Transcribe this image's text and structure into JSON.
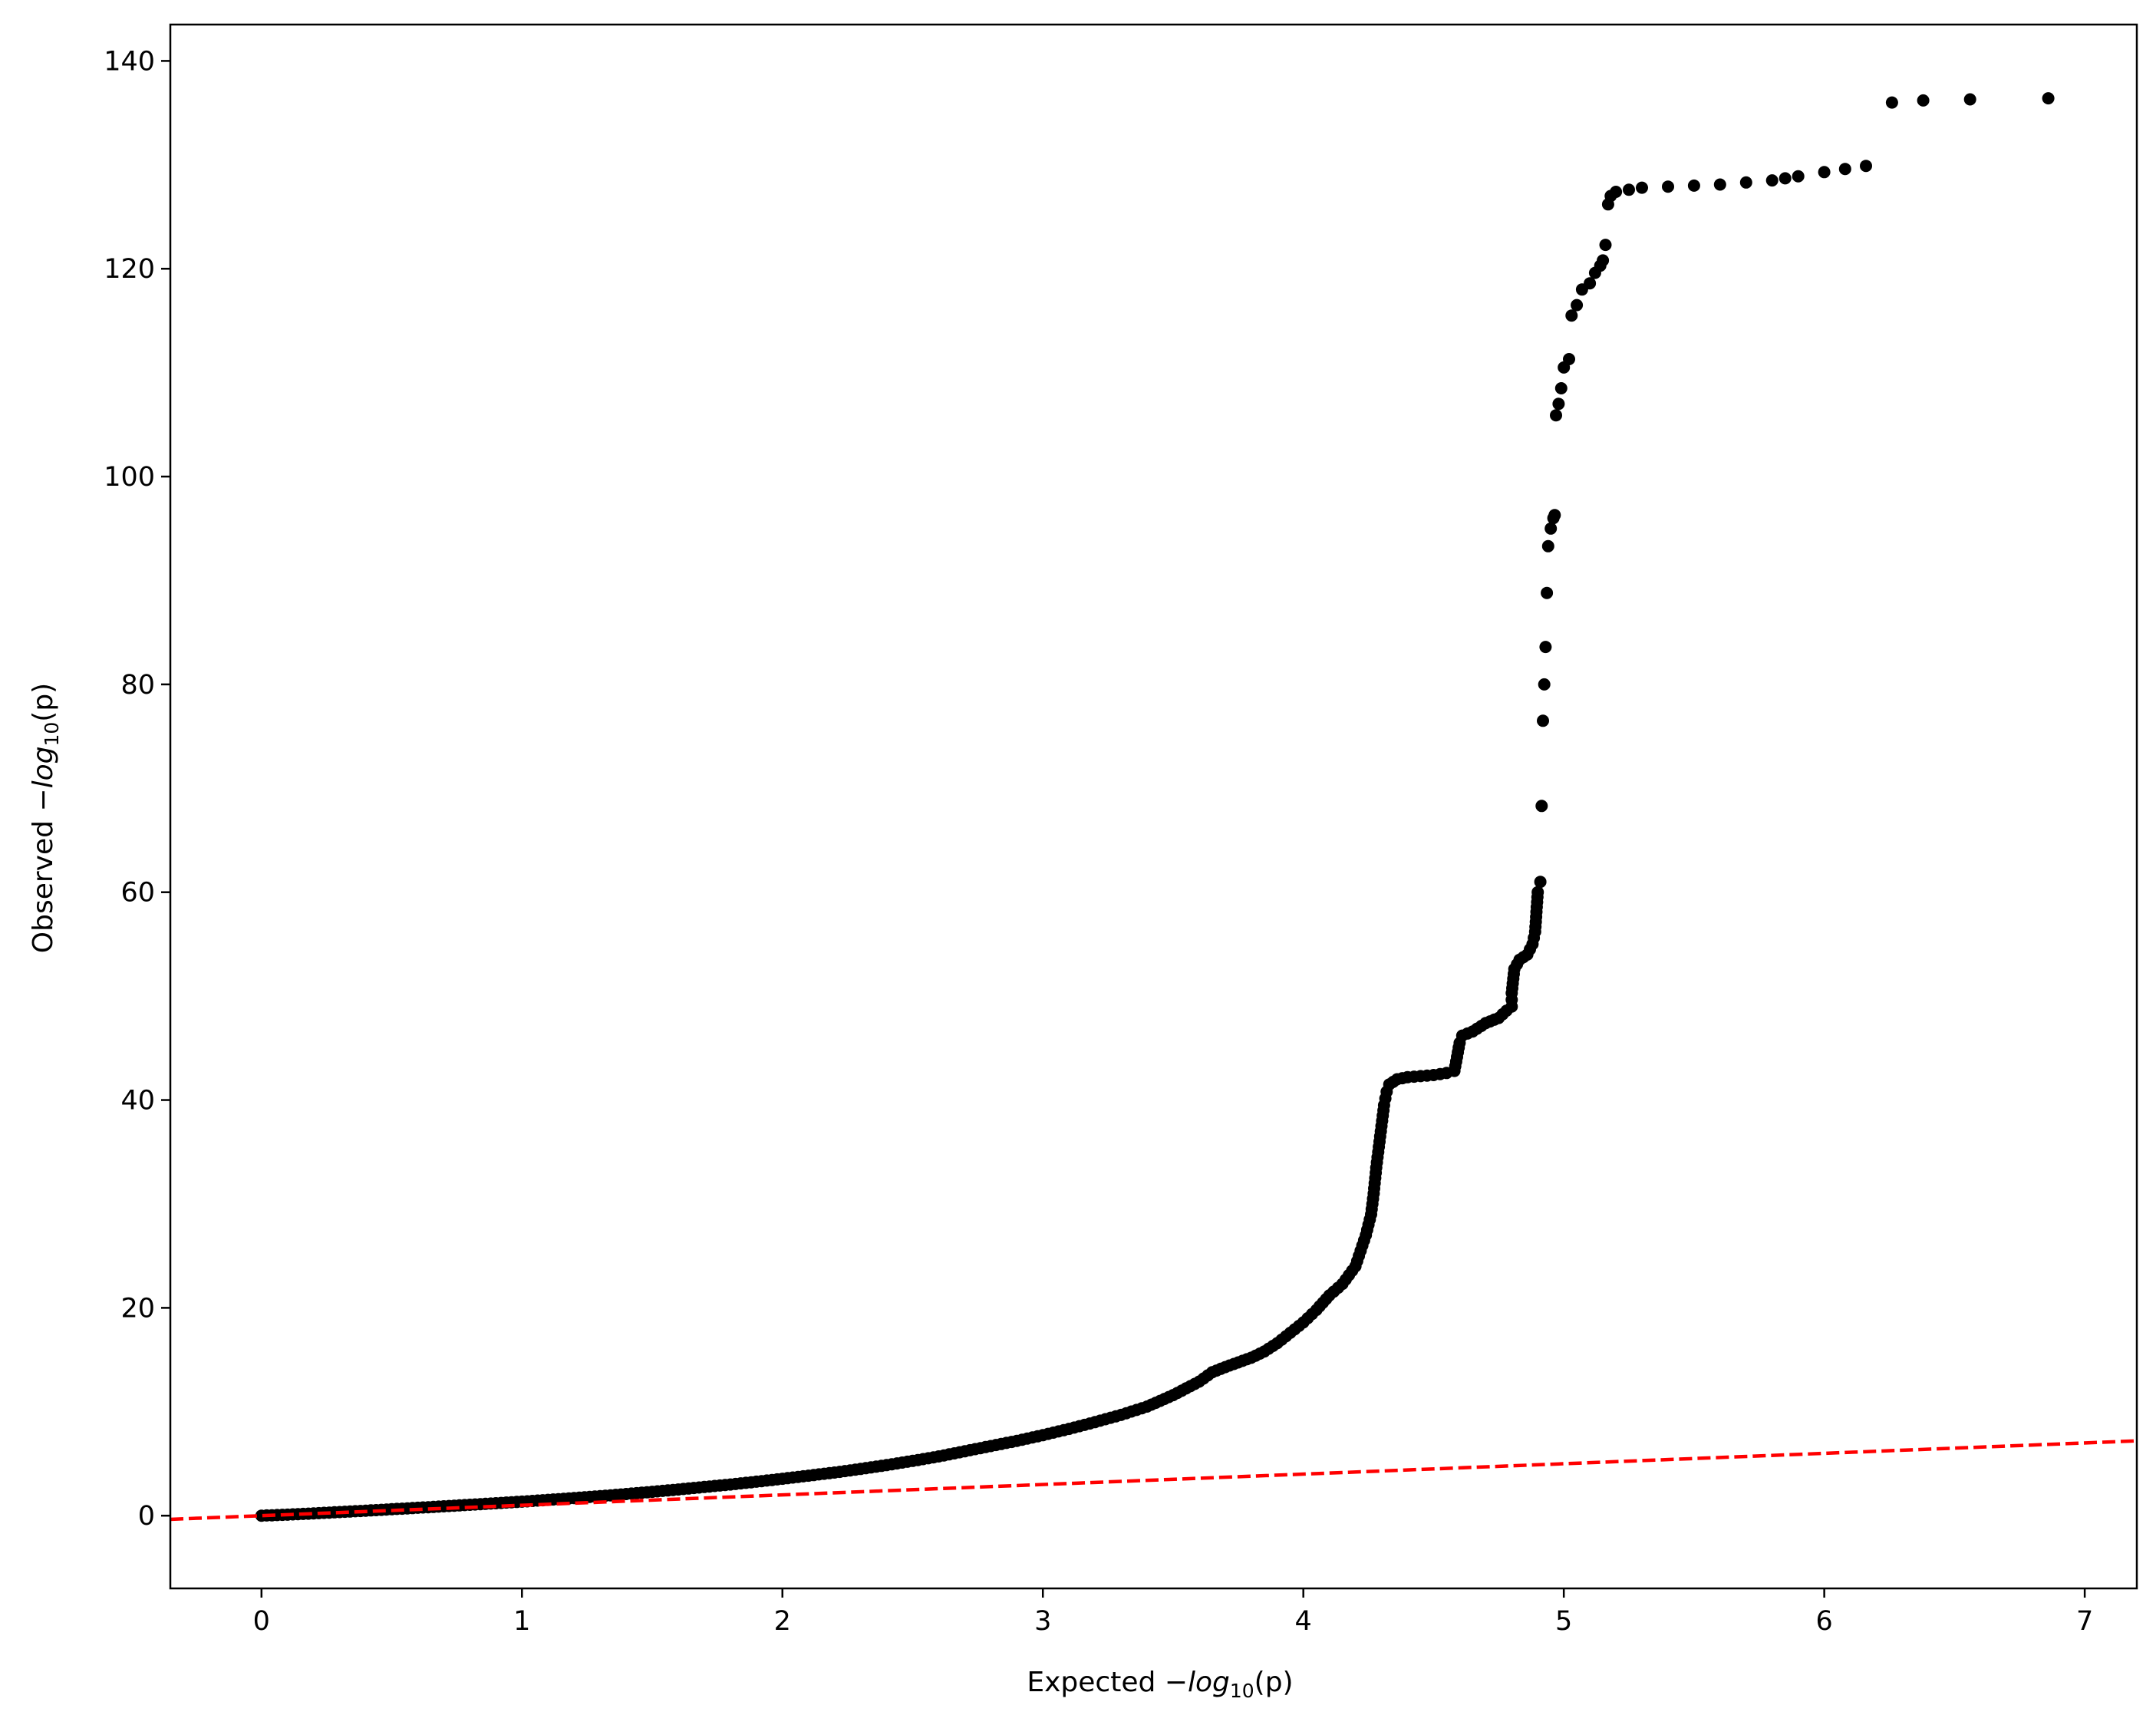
{
  "chart_data": {
    "type": "scatter",
    "title": "",
    "xlabel": {
      "prefix": "Expected ",
      "minus": "−",
      "log": "log",
      "sub": "10",
      "arg": "(p)"
    },
    "ylabel": {
      "prefix": "Observed ",
      "minus": "−",
      "log": "log",
      "sub": "10",
      "arg": "(p)"
    },
    "xlim": [
      -0.35,
      7.2
    ],
    "ylim": [
      -7,
      143.5
    ],
    "xticks": [
      0,
      1,
      2,
      3,
      4,
      5,
      6,
      7
    ],
    "xtick_labels": [
      "0",
      "1",
      "2",
      "3",
      "4",
      "5",
      "6",
      "7"
    ],
    "yticks": [
      0,
      20,
      40,
      60,
      80,
      100,
      120,
      140
    ],
    "ytick_labels": [
      "0",
      "20",
      "40",
      "60",
      "80",
      "100",
      "120",
      "140"
    ],
    "grid": false,
    "series": [
      {
        "kind": "points",
        "color": "#000000",
        "points": [
          [
            0.0,
            0.0
          ],
          [
            0.1,
            0.1
          ],
          [
            0.2,
            0.22
          ],
          [
            0.3,
            0.35
          ],
          [
            0.4,
            0.48
          ],
          [
            0.5,
            0.62
          ],
          [
            0.6,
            0.76
          ],
          [
            0.7,
            0.9
          ],
          [
            0.8,
            1.05
          ],
          [
            0.9,
            1.2
          ],
          [
            1.0,
            1.35
          ],
          [
            1.1,
            1.52
          ],
          [
            1.2,
            1.7
          ],
          [
            1.3,
            1.88
          ],
          [
            1.4,
            2.08
          ],
          [
            1.5,
            2.3
          ],
          [
            1.6,
            2.52
          ],
          [
            1.7,
            2.76
          ],
          [
            1.8,
            3.0
          ],
          [
            1.9,
            3.27
          ],
          [
            2.0,
            3.55
          ],
          [
            2.1,
            3.85
          ],
          [
            2.2,
            4.15
          ],
          [
            2.3,
            4.5
          ],
          [
            2.4,
            4.87
          ],
          [
            2.5,
            5.27
          ],
          [
            2.6,
            5.7
          ],
          [
            2.7,
            6.2
          ],
          [
            2.8,
            6.7
          ],
          [
            2.9,
            7.2
          ],
          [
            3.0,
            7.75
          ],
          [
            3.1,
            8.35
          ],
          [
            3.2,
            9.0
          ],
          [
            3.3,
            9.7
          ],
          [
            3.4,
            10.5
          ],
          [
            3.5,
            11.6
          ],
          [
            3.6,
            12.9
          ],
          [
            3.65,
            13.8
          ],
          [
            3.7,
            14.3
          ],
          [
            3.8,
            15.2
          ],
          [
            3.85,
            15.8
          ],
          [
            3.9,
            16.6
          ],
          [
            3.95,
            17.6
          ],
          [
            4.0,
            18.6
          ],
          [
            4.05,
            19.8
          ],
          [
            4.1,
            21.2
          ],
          [
            4.15,
            22.3
          ],
          [
            4.2,
            24.0
          ],
          [
            4.22,
            25.5
          ],
          [
            4.24,
            27.0
          ],
          [
            4.26,
            29.0
          ],
          [
            4.27,
            31.0
          ],
          [
            4.28,
            33.5
          ],
          [
            4.29,
            35.5
          ],
          [
            4.3,
            37.5
          ],
          [
            4.31,
            39.5
          ],
          [
            4.32,
            40.8
          ],
          [
            4.33,
            41.5
          ],
          [
            4.36,
            42.0
          ],
          [
            4.4,
            42.2
          ],
          [
            4.45,
            42.3
          ],
          [
            4.5,
            42.4
          ],
          [
            4.55,
            42.6
          ],
          [
            4.58,
            42.8
          ],
          [
            4.6,
            45.5
          ],
          [
            4.61,
            46.2
          ],
          [
            4.65,
            46.6
          ],
          [
            4.7,
            47.4
          ],
          [
            4.75,
            47.9
          ],
          [
            4.78,
            48.6
          ],
          [
            4.8,
            49.0
          ],
          [
            4.8,
            50.3
          ],
          [
            4.81,
            52.6
          ],
          [
            4.83,
            53.5
          ],
          [
            4.86,
            54.0
          ],
          [
            4.88,
            55.0
          ],
          [
            4.89,
            56.2
          ],
          [
            4.9,
            60.0
          ],
          [
            4.91,
            61.0
          ],
          [
            4.915,
            68.3
          ],
          [
            4.92,
            76.5
          ],
          [
            4.925,
            80.0
          ],
          [
            4.93,
            83.6
          ],
          [
            4.935,
            88.8
          ],
          [
            4.94,
            93.3
          ],
          [
            4.95,
            95.0
          ],
          [
            4.96,
            96.0
          ],
          [
            4.965,
            96.3
          ],
          [
            4.97,
            105.9
          ],
          [
            4.98,
            107.0
          ],
          [
            4.99,
            108.5
          ],
          [
            5.0,
            110.5
          ],
          [
            5.02,
            111.3
          ],
          [
            5.03,
            115.5
          ],
          [
            5.05,
            116.5
          ],
          [
            5.07,
            118.0
          ],
          [
            5.1,
            118.6
          ],
          [
            5.12,
            119.6
          ],
          [
            5.14,
            120.3
          ],
          [
            5.15,
            120.8
          ],
          [
            5.16,
            122.3
          ],
          [
            5.17,
            126.2
          ],
          [
            5.18,
            127.0
          ],
          [
            5.2,
            127.4
          ],
          [
            5.25,
            127.6
          ],
          [
            5.3,
            127.8
          ],
          [
            5.4,
            127.9
          ],
          [
            5.5,
            128.0
          ],
          [
            5.6,
            128.1
          ],
          [
            5.7,
            128.3
          ],
          [
            5.8,
            128.5
          ],
          [
            5.85,
            128.7
          ],
          [
            5.9,
            128.9
          ],
          [
            6.0,
            129.3
          ],
          [
            6.08,
            129.6
          ],
          [
            6.16,
            129.9
          ],
          [
            6.26,
            136.0
          ],
          [
            6.38,
            136.2
          ],
          [
            6.56,
            136.3
          ],
          [
            6.86,
            136.4
          ]
        ]
      },
      {
        "kind": "dashed-line",
        "color": "#ff0000",
        "line": [
          [
            -0.35,
            -0.35
          ],
          [
            7.2,
            7.2
          ]
        ]
      }
    ]
  }
}
